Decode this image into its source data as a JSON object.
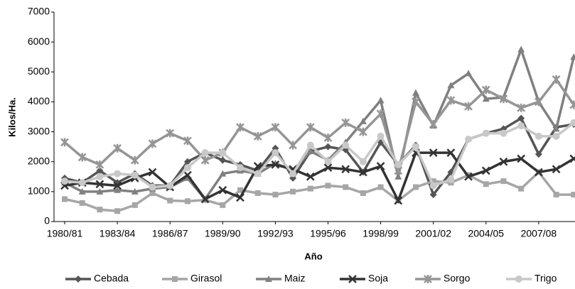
{
  "chart_data": {
    "type": "line",
    "xlabel": "Año",
    "ylabel": "Kilos/Ha.",
    "categories": [
      "1980/81",
      null,
      null,
      "1983/84",
      null,
      null,
      "1986/87",
      null,
      null,
      "1989/90",
      null,
      null,
      "1992/93",
      null,
      null,
      "1995/96",
      null,
      null,
      "1998/99",
      null,
      null,
      "2001/02",
      null,
      null,
      "2004/05",
      null,
      null,
      "2007/08",
      null,
      null
    ],
    "ylim": [
      0,
      7000
    ],
    "yticks": [
      0,
      1000,
      2000,
      3000,
      4000,
      5000,
      6000,
      7000
    ],
    "grid": false,
    "legend": "bottom",
    "series": [
      {
        "name": "Cebada",
        "color": "#555555",
        "marker": "diamond",
        "values": [
          1450,
          1300,
          1700,
          1300,
          1600,
          1200,
          1200,
          2000,
          2300,
          2050,
          1900,
          1700,
          2450,
          1450,
          2350,
          2500,
          2400,
          1650,
          2650,
          1900,
          2550,
          900,
          1650,
          2750,
          2950,
          3100,
          3450,
          2250,
          3150,
          3250
        ]
      },
      {
        "name": "Girasol",
        "color": "#a6a6a6",
        "marker": "square",
        "values": [
          750,
          620,
          400,
          350,
          550,
          950,
          700,
          680,
          720,
          550,
          1050,
          950,
          900,
          1000,
          1100,
          1200,
          1150,
          950,
          1150,
          700,
          1150,
          1350,
          1300,
          1550,
          1250,
          1350,
          1100,
          1650,
          900,
          900
        ]
      },
      {
        "name": "Maiz",
        "color": "#808080",
        "marker": "triangle",
        "values": [
          1300,
          1000,
          1000,
          1050,
          1000,
          1100,
          1150,
          1450,
          750,
          1600,
          1700,
          1600,
          1950,
          1700,
          2350,
          2050,
          2650,
          3350,
          4050,
          1500,
          4300,
          3200,
          4550,
          4950,
          4100,
          4150,
          5750,
          4000,
          3100,
          5500
        ]
      },
      {
        "name": "Soja",
        "color": "#333333",
        "marker": "x",
        "values": [
          1200,
          1300,
          1250,
          1200,
          1450,
          1650,
          1150,
          1550,
          750,
          1050,
          800,
          1850,
          1900,
          1750,
          1500,
          1800,
          1750,
          1650,
          1850,
          700,
          2300,
          2300,
          2300,
          1500,
          1700,
          2000,
          2100,
          1650,
          1750,
          2100
        ]
      },
      {
        "name": "Sorgo",
        "color": "#959595",
        "marker": "star",
        "values": [
          2650,
          2150,
          1900,
          2450,
          2050,
          2600,
          2950,
          2700,
          2050,
          2300,
          3150,
          2850,
          3150,
          2550,
          3150,
          2800,
          3300,
          3000,
          3600,
          1700,
          4000,
          3250,
          4050,
          3850,
          4400,
          4100,
          3800,
          4000,
          4750,
          3900
        ]
      },
      {
        "name": "Trigo",
        "color": "#c8c8c8",
        "marker": "circle",
        "values": [
          1350,
          1300,
          1500,
          1600,
          1550,
          1150,
          1200,
          1800,
          2300,
          2300,
          1800,
          1600,
          2300,
          1600,
          2550,
          2000,
          2550,
          2000,
          2850,
          1900,
          2500,
          1200,
          1400,
          2750,
          2950,
          2950,
          3200,
          2850,
          2850,
          3300
        ]
      }
    ]
  }
}
